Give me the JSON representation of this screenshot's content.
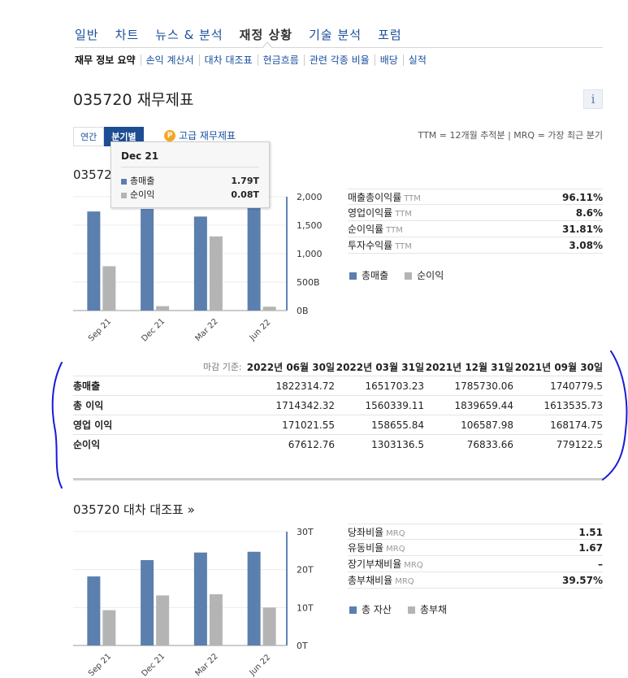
{
  "nav": {
    "items": [
      "일반",
      "차트",
      "뉴스 & 분석",
      "재정 상황",
      "기술 분석",
      "포럼"
    ],
    "active_index": 3
  },
  "subnav": {
    "items": [
      "재무 정보 요약",
      "손익 계산서",
      "대차 대조표",
      "현금흐름",
      "관련 각종 비율",
      "배당",
      "실적"
    ]
  },
  "page": {
    "title": "035720 재무제표",
    "info_label": "i"
  },
  "tabs": {
    "annual": "연간",
    "quarterly": "분기별",
    "advanced": "고급 재무제표",
    "advanced_icon": "P"
  },
  "ttm_note": "TTM = 12개월 추적분 | MRQ = 가장 최근 분기",
  "income_section": {
    "title": "03572"
  },
  "tooltip": {
    "header": "Dec 21",
    "rows": [
      {
        "label": "총매출",
        "value": "1.79T",
        "color": "#5b7fae"
      },
      {
        "label": "순이익",
        "value": "0.08T",
        "color": "#b4b4b4"
      }
    ]
  },
  "chart_data": [
    {
      "type": "bar",
      "categories": [
        "Sep 21",
        "Dec 21",
        "Mar 22",
        "Jun 22"
      ],
      "series": [
        {
          "name": "총매출",
          "values": [
            1740.8,
            1785.7,
            1651.7,
            1822.3
          ],
          "color": "#5b7fae"
        },
        {
          "name": "순이익",
          "values": [
            779.1,
            76.8,
            1303.1,
            67.6
          ],
          "color": "#b4b4b4"
        }
      ],
      "y_ticks": [
        "2,000",
        "1,500",
        "1,000",
        "500B",
        "0B"
      ],
      "ylim": [
        0,
        2000
      ]
    },
    {
      "type": "bar",
      "categories": [
        "Sep 21",
        "Dec 21",
        "Mar 22",
        "Jun 22"
      ],
      "series": [
        {
          "name": "총 자산",
          "values": [
            18.2,
            22.5,
            24.5,
            24.7
          ],
          "color": "#5b7fae"
        },
        {
          "name": "총부채",
          "values": [
            9.3,
            13.2,
            13.5,
            10.0
          ],
          "color": "#b4b4b4"
        }
      ],
      "y_ticks": [
        "30T",
        "20T",
        "10T",
        "0T"
      ],
      "ylim": [
        0,
        30
      ]
    }
  ],
  "income_ratios": [
    {
      "label": "매출총이익률",
      "tag": "TTM",
      "value": "96.11%"
    },
    {
      "label": "영업이익률",
      "tag": "TTM",
      "value": "8.6%"
    },
    {
      "label": "순이익률",
      "tag": "TTM",
      "value": "31.81%"
    },
    {
      "label": "투자수익률",
      "tag": "TTM",
      "value": "3.08%"
    }
  ],
  "income_legend": [
    "총매출",
    "순이익"
  ],
  "financial_table": {
    "date_label": "마감 기준:",
    "columns": [
      "2022년 06월 30일",
      "2022년 03월 31일",
      "2021년 12월 31일",
      "2021년 09월 30일"
    ],
    "rows": [
      {
        "name": "총매출",
        "values": [
          "1822314.72",
          "1651703.23",
          "1785730.06",
          "1740779.5"
        ]
      },
      {
        "name": "총 이익",
        "values": [
          "1714342.32",
          "1560339.11",
          "1839659.44",
          "1613535.73"
        ]
      },
      {
        "name": "영업 이익",
        "values": [
          "171021.55",
          "158655.84",
          "106587.98",
          "168174.75"
        ]
      },
      {
        "name": "순이익",
        "values": [
          "67612.76",
          "1303136.5",
          "76833.66",
          "779122.5"
        ]
      }
    ]
  },
  "balance_section": {
    "title": "035720 대차 대조표 »"
  },
  "balance_ratios": [
    {
      "label": "당좌비율",
      "tag": "MRQ",
      "value": "1.51"
    },
    {
      "label": "유동비율",
      "tag": "MRQ",
      "value": "1.67"
    },
    {
      "label": "장기부채비율",
      "tag": "MRQ",
      "value": "–"
    },
    {
      "label": "총부채비율",
      "tag": "MRQ",
      "value": "39.57%"
    }
  ],
  "balance_legend": [
    "총 자산",
    "총부채"
  ],
  "colors": {
    "blue": "#5b7fae",
    "gray": "#b4b4b4",
    "link": "#1a4f9c",
    "scribble": "#1b1bd6"
  }
}
